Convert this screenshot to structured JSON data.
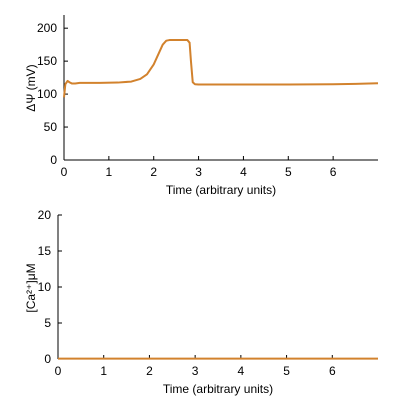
{
  "chart_data": [
    {
      "type": "line",
      "title": "",
      "xlabel": "Time (arbitrary units)",
      "ylabel": "ΔΨ (mV)",
      "xlim": [
        0,
        7
      ],
      "ylim": [
        0,
        220
      ],
      "xticks": [
        0,
        1,
        2,
        3,
        4,
        5,
        6
      ],
      "yticks": [
        0,
        50,
        100,
        150,
        200
      ],
      "grid": false,
      "series": [
        {
          "color": "#d2822d",
          "x": [
            0,
            0.03,
            0.08,
            0.12,
            0.18,
            0.25,
            0.35,
            0.5,
            0.8,
            1.2,
            1.5,
            1.7,
            1.85,
            2.0,
            2.1,
            2.2,
            2.28,
            2.35,
            2.45,
            2.6,
            2.75,
            2.8,
            2.83,
            2.87,
            2.92,
            3.0,
            3.5,
            4.0,
            5.0,
            6.0,
            6.5,
            7.0
          ],
          "values": [
            95,
            115,
            120,
            118,
            116,
            116,
            117,
            117,
            117,
            117.5,
            119,
            123,
            130,
            145,
            160,
            175,
            181,
            182,
            182,
            182,
            182,
            178,
            150,
            118,
            115,
            114.5,
            114.5,
            114.5,
            114.5,
            115,
            115.5,
            116.5
          ]
        }
      ]
    },
    {
      "type": "line",
      "title": "",
      "xlabel": "Time (arbitrary units)",
      "ylabel": "[Ca²⁺]μM",
      "xlim": [
        0,
        7
      ],
      "ylim": [
        0,
        20
      ],
      "xticks": [
        0,
        1,
        2,
        3,
        4,
        5,
        6
      ],
      "yticks": [
        0,
        5,
        10,
        15,
        20
      ],
      "grid": false,
      "series": [
        {
          "color": "#d2822d",
          "x": [
            0,
            7
          ],
          "values": [
            0.05,
            0.05
          ]
        }
      ]
    }
  ]
}
